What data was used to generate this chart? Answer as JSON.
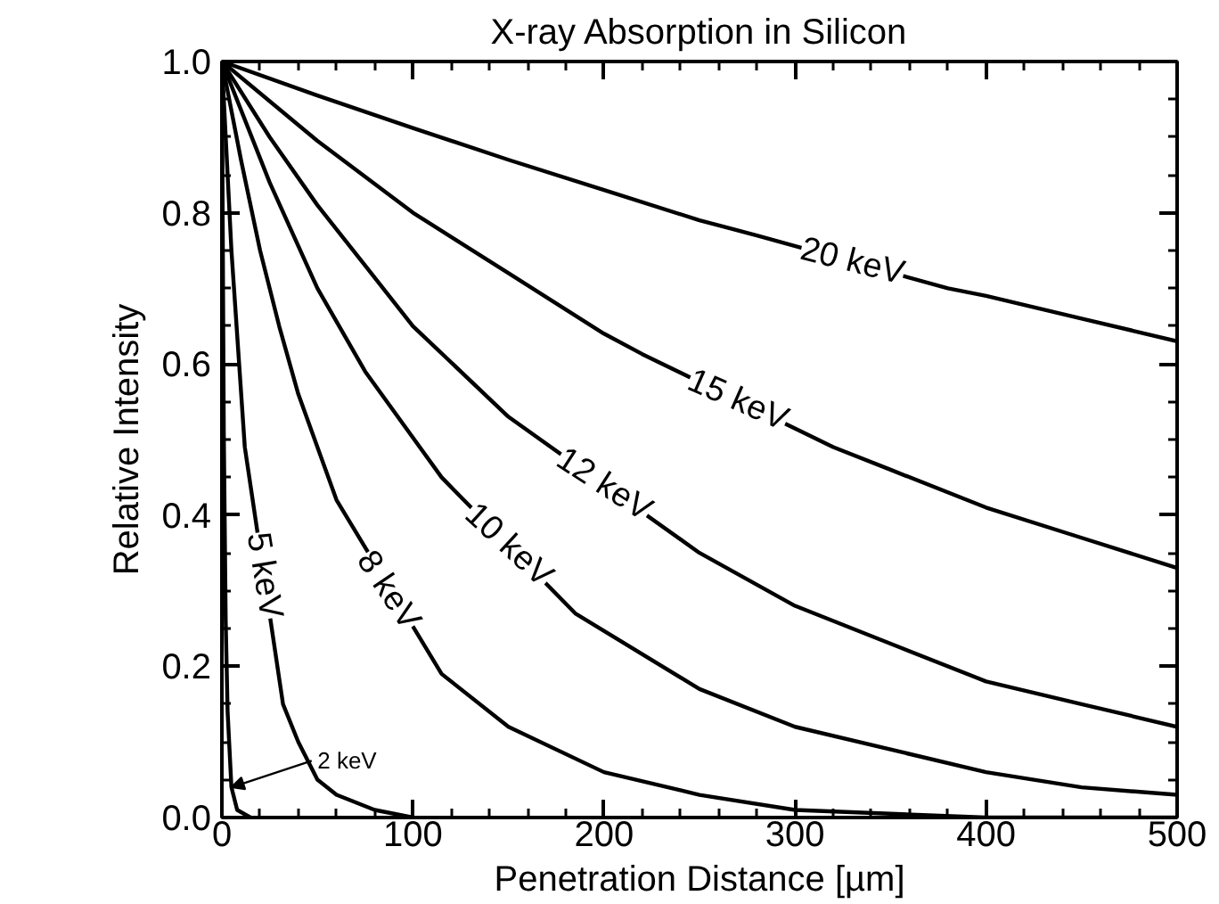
{
  "chart_data": {
    "type": "line",
    "title": "X-ray Absorption in Silicon",
    "xlabel": "Penetration Distance [µm]",
    "ylabel": "Relative Intensity",
    "xlim": [
      0,
      500
    ],
    "ylim": [
      0,
      1
    ],
    "xticks": [
      0,
      100,
      200,
      300,
      400,
      500
    ],
    "yticks": [
      {
        "value": 0,
        "label": "0.0"
      },
      0.2,
      0.4,
      0.6,
      0.8,
      {
        "value": 1,
        "label": "1.0"
      }
    ],
    "grid": false,
    "line_style": "solid",
    "marker": "none",
    "series": [
      {
        "color": "#000000",
        "x": [
          0,
          50,
          100,
          150,
          200,
          250,
          280,
          380,
          400,
          450,
          500
        ],
        "values": [
          1,
          0.955,
          0.912,
          0.87,
          0.83,
          0.79,
          0.77,
          0.7,
          0.69,
          0.66,
          0.63
        ]
      },
      {
        "color": "#000000",
        "x": [
          0,
          50,
          100,
          150,
          200,
          220,
          320,
          350,
          400,
          450,
          500
        ],
        "values": [
          1,
          0.895,
          0.8,
          0.72,
          0.64,
          0.613,
          0.49,
          0.46,
          0.41,
          0.37,
          0.33
        ]
      },
      {
        "color": "#000000",
        "x": [
          0,
          25,
          50,
          75,
          100,
          150,
          250,
          300,
          350,
          400,
          450,
          500
        ],
        "values": [
          1,
          0.9,
          0.81,
          0.73,
          0.65,
          0.53,
          0.35,
          0.28,
          0.23,
          0.18,
          0.15,
          0.12
        ]
      },
      {
        "color": "#000000",
        "x": [
          0,
          25,
          50,
          75,
          115,
          185,
          250,
          300,
          350,
          400,
          450,
          500
        ],
        "values": [
          1,
          0.84,
          0.7,
          0.59,
          0.45,
          0.27,
          0.17,
          0.12,
          0.09,
          0.06,
          0.04,
          0.03
        ]
      },
      {
        "color": "#000000",
        "x": [
          0,
          10,
          20,
          30,
          40,
          60,
          115,
          150,
          200,
          250,
          300,
          400,
          500
        ],
        "values": [
          1,
          0.87,
          0.75,
          0.65,
          0.56,
          0.42,
          0.19,
          0.12,
          0.06,
          0.03,
          0.01,
          0,
          0
        ]
      },
      {
        "color": "#000000",
        "x": [
          0,
          5,
          12,
          32,
          40,
          50,
          60,
          80,
          100
        ],
        "values": [
          1,
          0.75,
          0.49,
          0.15,
          0.1,
          0.05,
          0.03,
          0.01,
          0
        ]
      },
      {
        "color": "#000000",
        "x": [
          0,
          1,
          2,
          3,
          5,
          8,
          15
        ],
        "values": [
          1,
          0.51,
          0.26,
          0.14,
          0.04,
          0.01,
          0
        ]
      }
    ],
    "annotations": [
      {
        "text": "20 keV",
        "x": 330,
        "y": 0.735
      },
      {
        "text": "15 keV",
        "x": 270,
        "y": 0.5515
      },
      {
        "text": "12 keV",
        "x": 200,
        "y": 0.44
      },
      {
        "text": "10 keV",
        "x": 150,
        "y": 0.36
      },
      {
        "text": "8 keV",
        "x": 87,
        "y": 0.3
      },
      {
        "text": "5 keV",
        "x": 22,
        "y": 0.32
      },
      {
        "text": "2 keV",
        "x": 5,
        "y": 0.04
      }
    ]
  }
}
